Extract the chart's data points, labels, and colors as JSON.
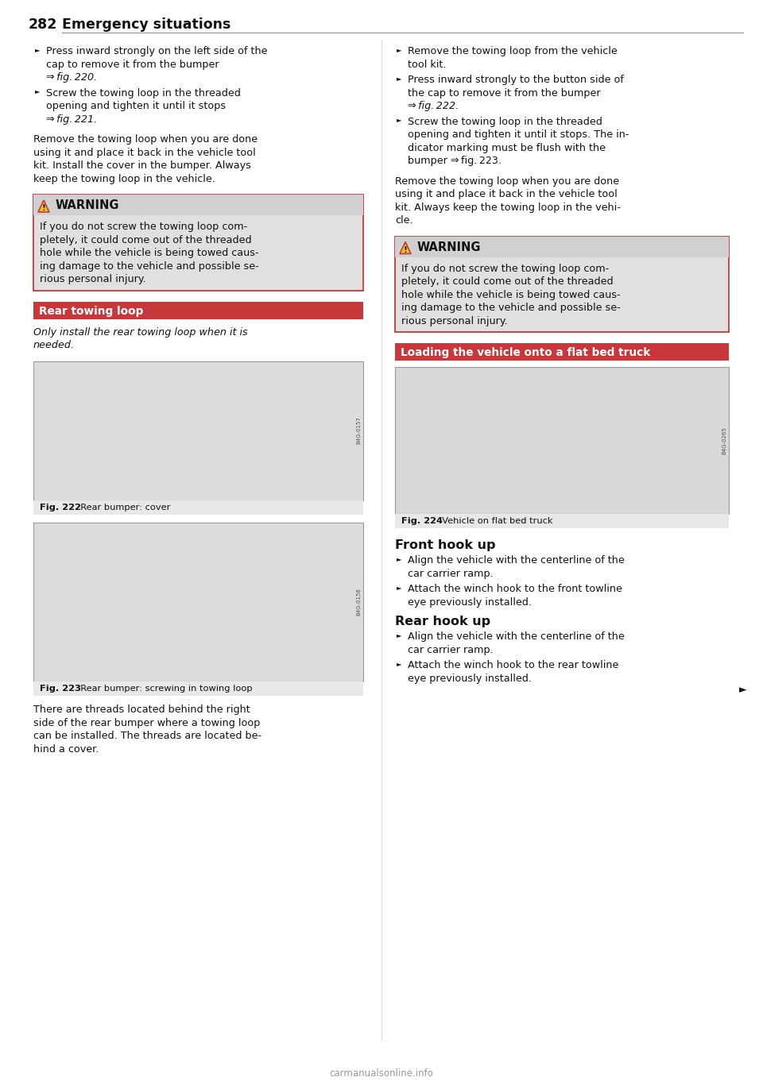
{
  "page_num": "282",
  "page_title": "Emergency situations",
  "bg_color": "#ffffff",
  "text_color": "#1a1a1a",
  "left_col": {
    "bullets_1": [
      [
        "Press inward strongly on the left side of the",
        "cap to remove it from the bumper",
        "⇒ fig. 220."
      ],
      [
        "Screw the towing loop in the threaded",
        "opening and tighten it until it stops",
        "⇒ fig. 221."
      ]
    ],
    "para_1": [
      "Remove the towing loop when you are done",
      "using it and place it back in the vehicle tool",
      "kit. Install the cover in the bumper. Always",
      "keep the towing loop in the vehicle."
    ],
    "warning_text": [
      "If you do not screw the towing loop com-",
      "pletely, it could come out of the threaded",
      "hole while the vehicle is being towed caus-",
      "ing damage to the vehicle and possible se-",
      "rious personal injury."
    ],
    "section_header": "Rear towing loop",
    "section_italic": [
      "Only install the rear towing loop when it is",
      "needed."
    ],
    "fig222_caption_bold": "Fig. 222",
    "fig222_caption_rest": "  Rear bumper: cover",
    "fig223_caption_bold": "Fig. 223",
    "fig223_caption_rest": "  Rear bumper: screwing in towing loop",
    "para_2": [
      "There are threads located behind the right",
      "side of the rear bumper where a towing loop",
      "can be installed. The threads are located be-",
      "hind a cover."
    ]
  },
  "right_col": {
    "bullets_1": [
      [
        "Remove the towing loop from the vehicle",
        "tool kit."
      ],
      [
        "Press inward strongly to the button side of",
        "the cap to remove it from the bumper",
        "⇒ fig. 222."
      ],
      [
        "Screw the towing loop in the threaded",
        "opening and tighten it until it stops. The in-",
        "dicator marking must be flush with the",
        "bumper ⇒ fig. 223."
      ]
    ],
    "para_1": [
      "Remove the towing loop when you are done",
      "using it and place it back in the vehicle tool",
      "kit. Always keep the towing loop in the vehi-",
      "cle."
    ],
    "warning_text": [
      "If you do not screw the towing loop com-",
      "pletely, it could come out of the threaded",
      "hole while the vehicle is being towed caus-",
      "ing damage to the vehicle and possible se-",
      "rious personal injury."
    ],
    "section_header": "Loading the vehicle onto a flat bed truck",
    "fig224_caption_bold": "Fig. 224",
    "fig224_caption_rest": "  Vehicle on flat bed truck",
    "front_hook_title": "Front hook up",
    "front_hook_bullets": [
      [
        "Align the vehicle with the centerline of the",
        "car carrier ramp."
      ],
      [
        "Attach the winch hook to the front towline",
        "eye previously installed."
      ]
    ],
    "rear_hook_title": "Rear hook up",
    "rear_hook_bullets": [
      [
        "Align the vehicle with the centerline of the",
        "car carrier ramp."
      ],
      [
        "Attach the winch hook to the rear towline",
        "eye previously installed."
      ]
    ]
  },
  "warning_bg": "#e0e0e0",
  "warning_border": "#c8373a",
  "warning_header_bg": "#e0e0e0",
  "section_header_bg": "#c8373a",
  "footer_text": "carmanualsonline.info",
  "image_border_color": "#aaaaaa",
  "img222_bg": "#dcdcdc",
  "img223_bg": "#dcdcdc",
  "img224_bg": "#d8d8d8",
  "fig_caption_bg": "#e8e8e8"
}
